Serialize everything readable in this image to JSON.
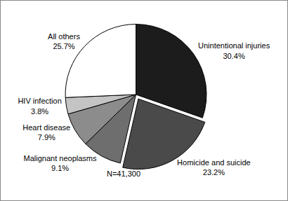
{
  "chart_data": {
    "type": "pie",
    "categories": [
      "Unintentional injuries",
      "Homicide and suicide",
      "Malignant neoplasms",
      "Heart disease",
      "HIV infection",
      "All others"
    ],
    "values": [
      30.4,
      23.2,
      9.1,
      7.9,
      3.8,
      25.7
    ],
    "value_labels": [
      "30.4%",
      "23.2%",
      "9.1%",
      "7.9%",
      "3.8%",
      "25.7%"
    ],
    "colors": [
      "#1c1c1c",
      "#4a4a4a",
      "#6e6e6e",
      "#8c8c8c",
      "#c4c4c4",
      "#ffffff"
    ],
    "data_labels": true,
    "annotations": [
      "N=41,300"
    ]
  }
}
